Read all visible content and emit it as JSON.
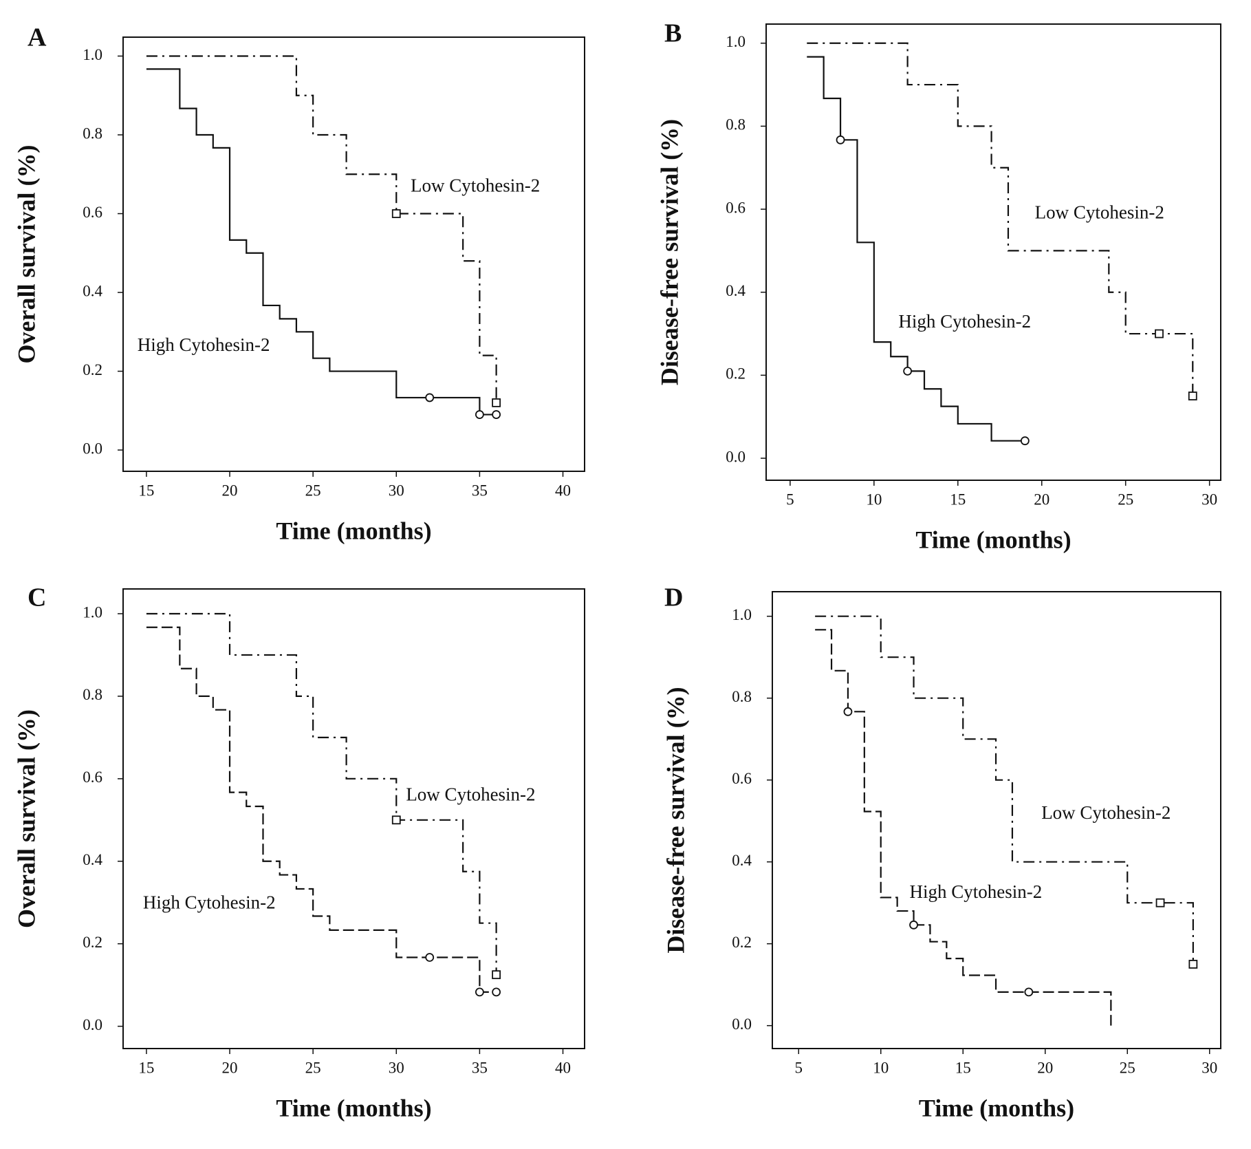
{
  "chart_data": [
    {
      "type": "step",
      "panel_label": "A",
      "xlabel": "Time (months)",
      "ylabel": "Overall survival (%)",
      "xlim": [
        13.6,
        41.3
      ],
      "ylim": [
        -0.054,
        1.048
      ],
      "xticks": [
        15,
        20,
        25,
        30,
        35,
        40
      ],
      "yticks": [
        {
          "value": 0,
          "label": "0.0"
        },
        {
          "value": 0.2,
          "label": "0.2"
        },
        {
          "value": 0.4,
          "label": "0.4"
        },
        {
          "value": 0.6,
          "label": "0.6"
        },
        {
          "value": 0.8,
          "label": "0.8"
        },
        {
          "value": 1,
          "label": "1.0"
        }
      ],
      "series": [
        {
          "name": "High Cytohesin-2",
          "color": "#111111",
          "linestyle": "solid",
          "marker": "circle",
          "x": [
            15,
            17,
            18,
            19,
            20,
            21,
            22,
            23,
            24,
            25,
            26,
            30,
            35,
            36
          ],
          "values": [
            0.967,
            0.867,
            0.8,
            0.767,
            0.533,
            0.5,
            0.367,
            0.333,
            0.3,
            0.233,
            0.2,
            0.133,
            0.09,
            0.09
          ],
          "censored_x": [
            32,
            35,
            36
          ],
          "censored_values": [
            0.133,
            0.09,
            0.09
          ]
        },
        {
          "name": "Low Cytohesin-2",
          "color": "#111111",
          "linestyle": "dashdot",
          "marker": "square",
          "x": [
            15,
            24,
            25,
            27,
            30,
            34,
            35,
            36
          ],
          "values": [
            1,
            0.9,
            0.8,
            0.7,
            0.6,
            0.48,
            0.24,
            0.12
          ],
          "censored_x": [
            30,
            36
          ],
          "censored_values": [
            0.6,
            0.12
          ]
        }
      ]
    },
    {
      "type": "step",
      "panel_label": "B",
      "xlabel": "Time (months)",
      "ylabel": "Disease-free survival (%)",
      "xlim": [
        3.57,
        30.67
      ],
      "ylim": [
        -0.053,
        1.046
      ],
      "xticks": [
        5,
        10,
        15,
        20,
        25,
        30
      ],
      "yticks": [
        {
          "value": 0,
          "label": "0.0"
        },
        {
          "value": 0.2,
          "label": "0.2"
        },
        {
          "value": 0.4,
          "label": "0.4"
        },
        {
          "value": 0.6,
          "label": "0.6"
        },
        {
          "value": 0.8,
          "label": "0.8"
        },
        {
          "value": 1,
          "label": "1.0"
        }
      ],
      "series": [
        {
          "name": "High Cytohesin-2",
          "color": "#111111",
          "linestyle": "solid",
          "marker": "circle",
          "x": [
            6,
            7,
            8,
            9,
            10,
            11,
            12,
            13,
            14,
            15,
            17,
            19
          ],
          "values": [
            0.967,
            0.867,
            0.767,
            0.52,
            0.28,
            0.245,
            0.21,
            0.167,
            0.125,
            0.083,
            0.042,
            0.042
          ],
          "censored_x": [
            8,
            12,
            19
          ],
          "censored_values": [
            0.767,
            0.21,
            0.042
          ]
        },
        {
          "name": "Low Cytohesin-2",
          "color": "#111111",
          "linestyle": "dashdot",
          "marker": "square",
          "x": [
            6,
            12,
            15,
            17,
            18,
            24,
            25,
            29
          ],
          "values": [
            1,
            0.9,
            0.8,
            0.7,
            0.5,
            0.4,
            0.3,
            0.15
          ],
          "censored_x": [
            27,
            29
          ],
          "censored_values": [
            0.3,
            0.15
          ]
        }
      ]
    },
    {
      "type": "step",
      "panel_label": "C",
      "xlabel": "Time (months)",
      "ylabel": "Overall survival (%)",
      "xlim": [
        13.6,
        41.3
      ],
      "ylim": [
        -0.054,
        1.06
      ],
      "xticks": [
        15,
        20,
        25,
        30,
        35,
        40
      ],
      "yticks": [
        {
          "value": 0,
          "label": "0.0"
        },
        {
          "value": 0.2,
          "label": "0.2"
        },
        {
          "value": 0.4,
          "label": "0.4"
        },
        {
          "value": 0.6,
          "label": "0.6"
        },
        {
          "value": 0.8,
          "label": "0.8"
        },
        {
          "value": 1,
          "label": "1.0"
        }
      ],
      "series": [
        {
          "name": "High Cytohesin-2",
          "color": "#111111",
          "linestyle": "dashed",
          "marker": "circle",
          "x": [
            15,
            17,
            18,
            19,
            20,
            21,
            22,
            23,
            24,
            25,
            26,
            30,
            35,
            36
          ],
          "values": [
            0.967,
            0.867,
            0.8,
            0.767,
            0.567,
            0.533,
            0.4,
            0.367,
            0.333,
            0.267,
            0.233,
            0.167,
            0.083,
            0.083
          ],
          "censored_x": [
            32,
            35,
            36
          ],
          "censored_values": [
            0.167,
            0.083,
            0.083
          ]
        },
        {
          "name": "Low Cytohesin-2",
          "color": "#111111",
          "linestyle": "dashdot",
          "marker": "square",
          "x": [
            15,
            20,
            24,
            25,
            27,
            30,
            34,
            35,
            36
          ],
          "values": [
            1,
            0.9,
            0.8,
            0.7,
            0.6,
            0.5,
            0.375,
            0.25,
            0.125
          ],
          "censored_x": [
            30,
            36
          ],
          "censored_values": [
            0.5,
            0.125
          ]
        }
      ]
    },
    {
      "type": "step",
      "panel_label": "D",
      "xlabel": "Time (months)",
      "ylabel": "Disease-free survival (%)",
      "xlim": [
        3.4,
        30.68
      ],
      "ylim": [
        -0.056,
        1.06
      ],
      "xticks": [
        5,
        10,
        15,
        20,
        25,
        30
      ],
      "yticks": [
        {
          "value": 0,
          "label": "0.0"
        },
        {
          "value": 0.2,
          "label": "0.2"
        },
        {
          "value": 0.4,
          "label": "0.4"
        },
        {
          "value": 0.6,
          "label": "0.6"
        },
        {
          "value": 0.8,
          "label": "0.8"
        },
        {
          "value": 1,
          "label": "1.0"
        }
      ],
      "series": [
        {
          "name": "High Cytohesin-2",
          "color": "#111111",
          "linestyle": "dashed",
          "marker": "circle",
          "x": [
            6,
            7,
            8,
            9,
            10,
            11,
            12,
            13,
            14,
            15,
            17,
            24
          ],
          "values": [
            0.967,
            0.867,
            0.767,
            0.523,
            0.313,
            0.28,
            0.246,
            0.205,
            0.164,
            0.123,
            0.082,
            0
          ],
          "censored_x": [
            8,
            12,
            19
          ],
          "censored_values": [
            0.767,
            0.246,
            0.082
          ]
        },
        {
          "name": "Low Cytohesin-2",
          "color": "#111111",
          "linestyle": "dashdot",
          "marker": "square",
          "x": [
            6,
            10,
            12,
            15,
            17,
            18,
            25,
            29
          ],
          "values": [
            1,
            0.9,
            0.8,
            0.7,
            0.6,
            0.4,
            0.3,
            0.15
          ],
          "censored_x": [
            27,
            29
          ],
          "censored_values": [
            0.3,
            0.15
          ]
        }
      ]
    }
  ]
}
